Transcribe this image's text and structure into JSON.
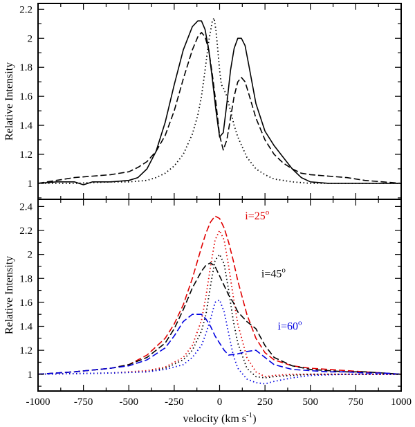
{
  "chart_data": [
    {
      "type": "line",
      "panel": "top",
      "title": "",
      "xlabel": "",
      "ylabel": "Relative Intensity",
      "xlim": [
        -1000,
        1000
      ],
      "ylim": [
        0.89,
        2.24
      ],
      "yticks": [
        "1",
        "1.2",
        "1.4",
        "1.6",
        "1.8",
        "2",
        "2.2"
      ],
      "series": [
        {
          "name": "solid",
          "color": "#000000",
          "dash": "solid",
          "x": [
            -1000,
            -900,
            -800,
            -750,
            -700,
            -600,
            -500,
            -450,
            -400,
            -350,
            -300,
            -250,
            -200,
            -150,
            -120,
            -100,
            -80,
            -60,
            -40,
            -20,
            0,
            20,
            40,
            60,
            80,
            100,
            120,
            140,
            160,
            200,
            250,
            300,
            350,
            400,
            450,
            500,
            600,
            700,
            800,
            900,
            1000
          ],
          "y": [
            1.0,
            1.01,
            1.01,
            0.99,
            1.01,
            1.01,
            1.02,
            1.04,
            1.1,
            1.22,
            1.42,
            1.68,
            1.92,
            2.08,
            2.12,
            2.12,
            2.06,
            1.92,
            1.72,
            1.5,
            1.32,
            1.35,
            1.55,
            1.78,
            1.93,
            2.0,
            2.0,
            1.95,
            1.82,
            1.55,
            1.36,
            1.26,
            1.18,
            1.1,
            1.04,
            1.01,
            1.0,
            1.0,
            1.0,
            1.0,
            1.0
          ]
        },
        {
          "name": "dashed",
          "color": "#000000",
          "dash": "dashed",
          "x": [
            -1000,
            -900,
            -800,
            -700,
            -600,
            -500,
            -450,
            -400,
            -350,
            -300,
            -250,
            -200,
            -150,
            -120,
            -100,
            -80,
            -60,
            -40,
            -20,
            0,
            20,
            40,
            60,
            80,
            100,
            120,
            140,
            160,
            200,
            250,
            300,
            350,
            400,
            450,
            500,
            600,
            700,
            800,
            900,
            1000
          ],
          "y": [
            1.0,
            1.02,
            1.04,
            1.05,
            1.06,
            1.08,
            1.11,
            1.15,
            1.22,
            1.33,
            1.5,
            1.72,
            1.92,
            2.01,
            2.04,
            2.01,
            1.92,
            1.75,
            1.55,
            1.33,
            1.23,
            1.3,
            1.45,
            1.6,
            1.7,
            1.73,
            1.7,
            1.62,
            1.45,
            1.3,
            1.2,
            1.14,
            1.1,
            1.07,
            1.06,
            1.05,
            1.04,
            1.02,
            1.01,
            1.0
          ]
        },
        {
          "name": "dotted",
          "color": "#000000",
          "dash": "dotted",
          "x": [
            -1000,
            -800,
            -600,
            -500,
            -400,
            -350,
            -300,
            -250,
            -200,
            -150,
            -120,
            -100,
            -80,
            -60,
            -40,
            -30,
            -20,
            -10,
            0,
            10,
            20,
            40,
            60,
            80,
            100,
            150,
            200,
            250,
            300,
            350,
            400,
            500,
            600,
            800,
            1000
          ],
          "y": [
            1.0,
            1.0,
            1.01,
            1.01,
            1.02,
            1.04,
            1.07,
            1.12,
            1.2,
            1.34,
            1.47,
            1.6,
            1.78,
            1.98,
            2.12,
            2.14,
            2.05,
            1.92,
            1.78,
            1.68,
            1.66,
            1.6,
            1.5,
            1.4,
            1.32,
            1.18,
            1.1,
            1.06,
            1.03,
            1.02,
            1.01,
            1.0,
            1.0,
            1.0,
            1.0
          ]
        }
      ]
    },
    {
      "type": "line",
      "panel": "bottom",
      "title": "",
      "xlabel": "velocity (km s",
      "xlabel_sup": "-1",
      "xlabel_end": ")",
      "ylabel": "Relative Intensity",
      "xlim": [
        -1000,
        1000
      ],
      "ylim": [
        0.86,
        2.46
      ],
      "xticks": [
        "-1000",
        "-750",
        "-500",
        "-250",
        "0",
        "250",
        "500",
        "750",
        "1000"
      ],
      "yticks": [
        "1",
        "1.2",
        "1.4",
        "1.6",
        "1.8",
        "2",
        "2.2",
        "2.4"
      ],
      "annotations": [
        {
          "text": "i=25",
          "sup": "o",
          "color": "#e00000",
          "x": 140,
          "y": 2.32
        },
        {
          "text": "i=45",
          "sup": "o",
          "color": "#000000",
          "x": 230,
          "y": 1.84
        },
        {
          "text": "i=60",
          "sup": "o",
          "color": "#0000e0",
          "x": 320,
          "y": 1.4
        }
      ],
      "series": [
        {
          "name": "i=25 dashed",
          "color": "#e00000",
          "dash": "dashed",
          "x": [
            -1000,
            -800,
            -600,
            -500,
            -400,
            -300,
            -250,
            -200,
            -150,
            -100,
            -75,
            -50,
            -25,
            0,
            25,
            50,
            75,
            100,
            150,
            200,
            250,
            300,
            400,
            500,
            600,
            700,
            800,
            900,
            1000
          ],
          "y": [
            1.0,
            1.02,
            1.05,
            1.08,
            1.16,
            1.3,
            1.42,
            1.58,
            1.8,
            2.06,
            2.18,
            2.27,
            2.32,
            2.3,
            2.22,
            2.1,
            1.95,
            1.78,
            1.5,
            1.3,
            1.18,
            1.12,
            1.07,
            1.05,
            1.04,
            1.03,
            1.02,
            1.01,
            1.0
          ]
        },
        {
          "name": "i=25 dotted",
          "color": "#e00000",
          "dash": "dotted",
          "x": [
            -1000,
            -600,
            -400,
            -300,
            -200,
            -150,
            -100,
            -75,
            -50,
            -25,
            0,
            25,
            50,
            75,
            100,
            150,
            200,
            250,
            300,
            400,
            500,
            700,
            1000
          ],
          "y": [
            1.0,
            1.01,
            1.03,
            1.06,
            1.14,
            1.24,
            1.45,
            1.65,
            1.9,
            2.12,
            2.2,
            2.12,
            1.9,
            1.65,
            1.42,
            1.14,
            1.02,
            0.98,
            0.99,
            1.0,
            1.0,
            1.0,
            1.0
          ]
        },
        {
          "name": "i=45 dashed",
          "color": "#000000",
          "dash": "dashed",
          "x": [
            -1000,
            -800,
            -600,
            -500,
            -400,
            -300,
            -250,
            -200,
            -150,
            -100,
            -75,
            -50,
            -25,
            0,
            25,
            50,
            75,
            100,
            150,
            200,
            250,
            300,
            400,
            500,
            600,
            700,
            800,
            900,
            1000
          ],
          "y": [
            1.0,
            1.02,
            1.05,
            1.08,
            1.14,
            1.26,
            1.38,
            1.54,
            1.72,
            1.86,
            1.91,
            1.93,
            1.9,
            1.82,
            1.74,
            1.66,
            1.6,
            1.52,
            1.44,
            1.38,
            1.24,
            1.14,
            1.07,
            1.04,
            1.03,
            1.02,
            1.02,
            1.01,
            1.0
          ]
        },
        {
          "name": "i=45 dotted",
          "color": "#000000",
          "dash": "dotted",
          "x": [
            -1000,
            -600,
            -400,
            -300,
            -200,
            -150,
            -100,
            -75,
            -50,
            -25,
            0,
            25,
            50,
            75,
            100,
            150,
            200,
            250,
            300,
            400,
            500,
            700,
            1000
          ],
          "y": [
            1.0,
            1.01,
            1.02,
            1.05,
            1.12,
            1.2,
            1.36,
            1.5,
            1.74,
            1.95,
            2.0,
            1.92,
            1.7,
            1.45,
            1.26,
            1.05,
            0.98,
            0.97,
            0.98,
            0.99,
            1.0,
            1.0,
            1.0
          ]
        },
        {
          "name": "i=60 dashed",
          "color": "#0000e0",
          "dash": "dashed",
          "x": [
            -1000,
            -800,
            -600,
            -500,
            -400,
            -300,
            -250,
            -200,
            -150,
            -100,
            -75,
            -50,
            -25,
            0,
            25,
            50,
            100,
            150,
            200,
            250,
            300,
            400,
            500,
            600,
            700,
            800,
            900,
            1000
          ],
          "y": [
            1.0,
            1.02,
            1.05,
            1.07,
            1.12,
            1.22,
            1.32,
            1.44,
            1.5,
            1.5,
            1.46,
            1.4,
            1.32,
            1.26,
            1.2,
            1.16,
            1.17,
            1.19,
            1.2,
            1.14,
            1.08,
            1.04,
            1.03,
            1.02,
            1.02,
            1.01,
            1.01,
            1.0
          ]
        },
        {
          "name": "i=60 dotted",
          "color": "#0000e0",
          "dash": "dotted",
          "x": [
            -1000,
            -600,
            -400,
            -300,
            -200,
            -150,
            -100,
            -75,
            -50,
            -25,
            0,
            25,
            50,
            75,
            100,
            150,
            200,
            250,
            300,
            400,
            500,
            700,
            1000
          ],
          "y": [
            1.0,
            1.01,
            1.02,
            1.04,
            1.08,
            1.14,
            1.24,
            1.34,
            1.46,
            1.6,
            1.62,
            1.52,
            1.34,
            1.16,
            1.05,
            0.96,
            0.93,
            0.92,
            0.94,
            0.97,
            0.99,
            1.0,
            1.0
          ]
        }
      ]
    }
  ]
}
